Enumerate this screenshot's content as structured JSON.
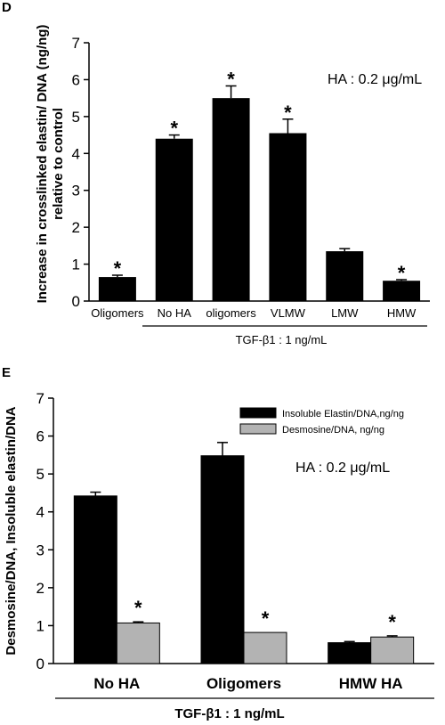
{
  "chart_data": [
    {
      "panel": "D",
      "type": "bar",
      "ylabel_line1": "Increase in crosslinked elastin/ DNA (ng/ng)",
      "ylabel_line2": "relative to control",
      "ylim": [
        0,
        7
      ],
      "yticks": [
        "0",
        "1",
        "2",
        "3",
        "4",
        "5",
        "6",
        "7"
      ],
      "annotation": "HA : 0.2 μg/mL",
      "treatment_label": "TGF-β1 : 1 ng/mL",
      "categories": [
        "Oligomers",
        "No HA",
        "oligomers",
        "VLMW",
        "LMW",
        "HMW"
      ],
      "values": [
        0.65,
        4.4,
        5.5,
        4.55,
        1.35,
        0.55
      ],
      "errors": [
        0.05,
        0.1,
        0.33,
        0.38,
        0.07,
        0.03
      ],
      "significance": [
        "*",
        "*",
        "*",
        "*",
        "",
        "*"
      ],
      "bar_color": "#000000"
    },
    {
      "panel": "E",
      "type": "bar",
      "ylabel": "Desmosine/DNA, Insoluble elastin/DNA",
      "ylim": [
        0,
        7
      ],
      "yticks": [
        "0",
        "1",
        "2",
        "3",
        "4",
        "5",
        "6",
        "7"
      ],
      "annotation": "HA : 0.2 μg/mL",
      "treatment_label": "TGF-β1 : 1 ng/mL",
      "categories": [
        "No HA",
        "Oligomers",
        "HMW HA"
      ],
      "series": [
        {
          "name": "Insoluble Elastin/DNA,ng/ng",
          "color": "#000000",
          "values": [
            4.42,
            5.48,
            0.55
          ],
          "errors": [
            0.1,
            0.35,
            0.03
          ],
          "significance": [
            "",
            "",
            ""
          ]
        },
        {
          "name": "Desmosine/DNA, ng/ng",
          "color": "#b3b3b3",
          "values": [
            1.07,
            0.82,
            0.7
          ],
          "errors": [
            0.03,
            0.0,
            0.03
          ],
          "significance": [
            "*",
            "*",
            "*"
          ]
        }
      ],
      "legend_position": "top-right"
    }
  ]
}
